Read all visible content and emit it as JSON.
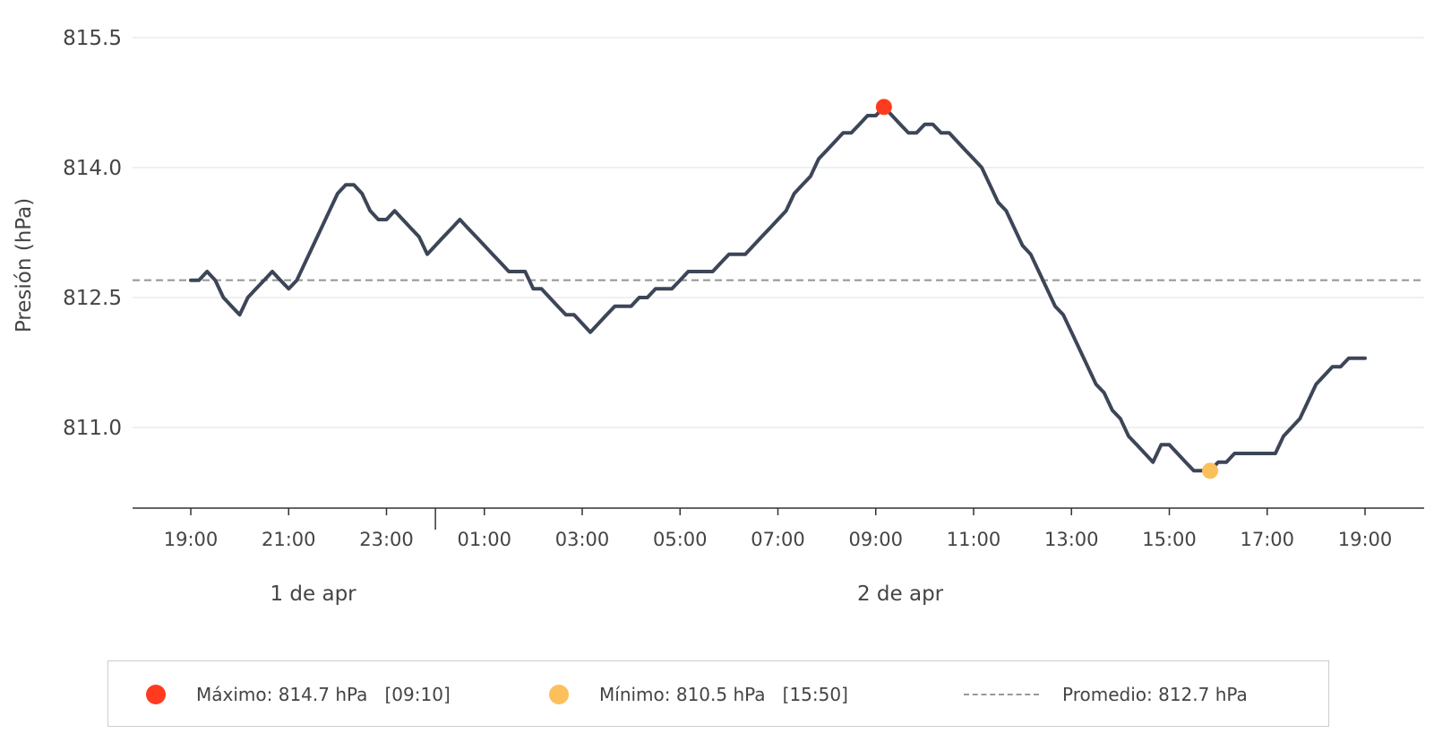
{
  "chart_data": {
    "type": "line",
    "title": "",
    "ylabel": "Presión (hPa)",
    "xlabel": "",
    "ylim": [
      810.1,
      815.9
    ],
    "yticks": [
      811.0,
      812.5,
      814.0,
      815.5
    ],
    "ytick_labels": [
      "811.0",
      "812.5",
      "814.0",
      "815.5"
    ],
    "x_start": "2024-04-01T19:00",
    "x_end": "2024-04-02T19:00",
    "xticks": [
      "19:00",
      "21:00",
      "23:00",
      "01:00",
      "03:00",
      "05:00",
      "07:00",
      "09:00",
      "11:00",
      "13:00",
      "15:00",
      "17:00",
      "19:00"
    ],
    "date_labels": [
      {
        "label": "1 de apr",
        "at": "2024-04-01T21:30"
      },
      {
        "label": "2 de apr",
        "at": "2024-04-02T09:30"
      }
    ],
    "day_boundary": "2024-04-02T00:00",
    "grid": true,
    "series": [
      {
        "color": "#3d4558",
        "points": [
          [
            "19:00",
            812.7
          ],
          [
            "19:10",
            812.7
          ],
          [
            "19:20",
            812.8
          ],
          [
            "19:30",
            812.7
          ],
          [
            "19:40",
            812.5
          ],
          [
            "19:50",
            812.4
          ],
          [
            "20:00",
            812.3
          ],
          [
            "20:10",
            812.5
          ],
          [
            "20:20",
            812.6
          ],
          [
            "20:30",
            812.7
          ],
          [
            "20:40",
            812.8
          ],
          [
            "20:50",
            812.7
          ],
          [
            "21:00",
            812.6
          ],
          [
            "21:10",
            812.7
          ],
          [
            "21:20",
            812.9
          ],
          [
            "21:30",
            813.1
          ],
          [
            "21:40",
            813.3
          ],
          [
            "21:50",
            813.5
          ],
          [
            "22:00",
            813.7
          ],
          [
            "22:10",
            813.8
          ],
          [
            "22:20",
            813.8
          ],
          [
            "22:30",
            813.7
          ],
          [
            "22:40",
            813.5
          ],
          [
            "22:50",
            813.4
          ],
          [
            "23:00",
            813.4
          ],
          [
            "23:10",
            813.5
          ],
          [
            "23:20",
            813.4
          ],
          [
            "23:30",
            813.3
          ],
          [
            "23:40",
            813.2
          ],
          [
            "23:50",
            813.0
          ],
          [
            "00:00",
            813.1
          ],
          [
            "00:10",
            813.2
          ],
          [
            "00:20",
            813.3
          ],
          [
            "00:30",
            813.4
          ],
          [
            "00:40",
            813.3
          ],
          [
            "00:50",
            813.2
          ],
          [
            "01:00",
            813.1
          ],
          [
            "01:10",
            813.0
          ],
          [
            "01:20",
            812.9
          ],
          [
            "01:30",
            812.8
          ],
          [
            "01:40",
            812.8
          ],
          [
            "01:50",
            812.8
          ],
          [
            "02:00",
            812.6
          ],
          [
            "02:10",
            812.6
          ],
          [
            "02:20",
            812.5
          ],
          [
            "02:30",
            812.4
          ],
          [
            "02:40",
            812.3
          ],
          [
            "02:50",
            812.3
          ],
          [
            "03:00",
            812.2
          ],
          [
            "03:10",
            812.1
          ],
          [
            "03:20",
            812.2
          ],
          [
            "03:30",
            812.3
          ],
          [
            "03:40",
            812.4
          ],
          [
            "03:50",
            812.4
          ],
          [
            "04:00",
            812.4
          ],
          [
            "04:10",
            812.5
          ],
          [
            "04:20",
            812.5
          ],
          [
            "04:30",
            812.6
          ],
          [
            "04:40",
            812.6
          ],
          [
            "04:50",
            812.6
          ],
          [
            "05:00",
            812.7
          ],
          [
            "05:10",
            812.8
          ],
          [
            "05:20",
            812.8
          ],
          [
            "05:30",
            812.8
          ],
          [
            "05:40",
            812.8
          ],
          [
            "05:50",
            812.9
          ],
          [
            "06:00",
            813.0
          ],
          [
            "06:10",
            813.0
          ],
          [
            "06:20",
            813.0
          ],
          [
            "06:30",
            813.1
          ],
          [
            "06:40",
            813.2
          ],
          [
            "06:50",
            813.3
          ],
          [
            "07:00",
            813.4
          ],
          [
            "07:10",
            813.5
          ],
          [
            "07:20",
            813.7
          ],
          [
            "07:30",
            813.8
          ],
          [
            "07:40",
            813.9
          ],
          [
            "07:50",
            814.1
          ],
          [
            "08:00",
            814.2
          ],
          [
            "08:10",
            814.3
          ],
          [
            "08:20",
            814.4
          ],
          [
            "08:30",
            814.4
          ],
          [
            "08:40",
            814.5
          ],
          [
            "08:50",
            814.6
          ],
          [
            "09:00",
            814.6
          ],
          [
            "09:10",
            814.7
          ],
          [
            "09:20",
            814.6
          ],
          [
            "09:30",
            814.5
          ],
          [
            "09:40",
            814.4
          ],
          [
            "09:50",
            814.4
          ],
          [
            "10:00",
            814.5
          ],
          [
            "10:10",
            814.5
          ],
          [
            "10:20",
            814.4
          ],
          [
            "10:30",
            814.4
          ],
          [
            "10:40",
            814.3
          ],
          [
            "10:50",
            814.2
          ],
          [
            "11:00",
            814.1
          ],
          [
            "11:10",
            814.0
          ],
          [
            "11:20",
            813.8
          ],
          [
            "11:30",
            813.6
          ],
          [
            "11:40",
            813.5
          ],
          [
            "11:50",
            813.3
          ],
          [
            "12:00",
            813.1
          ],
          [
            "12:10",
            813.0
          ],
          [
            "12:20",
            812.8
          ],
          [
            "12:30",
            812.6
          ],
          [
            "12:40",
            812.4
          ],
          [
            "12:50",
            812.3
          ],
          [
            "13:00",
            812.1
          ],
          [
            "13:10",
            811.9
          ],
          [
            "13:20",
            811.7
          ],
          [
            "13:30",
            811.5
          ],
          [
            "13:40",
            811.4
          ],
          [
            "13:50",
            811.2
          ],
          [
            "14:00",
            811.1
          ],
          [
            "14:10",
            810.9
          ],
          [
            "14:20",
            810.8
          ],
          [
            "14:30",
            810.7
          ],
          [
            "14:40",
            810.6
          ],
          [
            "14:50",
            810.8
          ],
          [
            "15:00",
            810.8
          ],
          [
            "15:10",
            810.7
          ],
          [
            "15:20",
            810.6
          ],
          [
            "15:30",
            810.5
          ],
          [
            "15:40",
            810.5
          ],
          [
            "15:50",
            810.5
          ],
          [
            "16:00",
            810.6
          ],
          [
            "16:10",
            810.6
          ],
          [
            "16:20",
            810.7
          ],
          [
            "16:30",
            810.7
          ],
          [
            "16:40",
            810.7
          ],
          [
            "16:50",
            810.7
          ],
          [
            "17:00",
            810.7
          ],
          [
            "17:10",
            810.7
          ],
          [
            "17:20",
            810.9
          ],
          [
            "17:30",
            811.0
          ],
          [
            "17:40",
            811.1
          ],
          [
            "17:50",
            811.3
          ],
          [
            "18:00",
            811.5
          ],
          [
            "18:10",
            811.6
          ],
          [
            "18:20",
            811.7
          ],
          [
            "18:30",
            811.7
          ],
          [
            "18:40",
            811.8
          ],
          [
            "18:50",
            811.8
          ],
          [
            "19:00",
            811.8
          ]
        ]
      }
    ],
    "average": {
      "value": 812.7,
      "color": "#999999"
    },
    "max_marker": {
      "time": "09:10",
      "value": 814.7,
      "color": "#ff3b1f"
    },
    "min_marker": {
      "time": "15:50",
      "value": 810.5,
      "color": "#fbbf5c"
    },
    "legend": {
      "placement": "bottom",
      "max_label": "Máximo: 814.7 hPa   [09:10]",
      "min_label": "Mínimo: 810.5 hPa   [15:50]",
      "avg_label": "Promedio: 812.7 hPa"
    }
  }
}
